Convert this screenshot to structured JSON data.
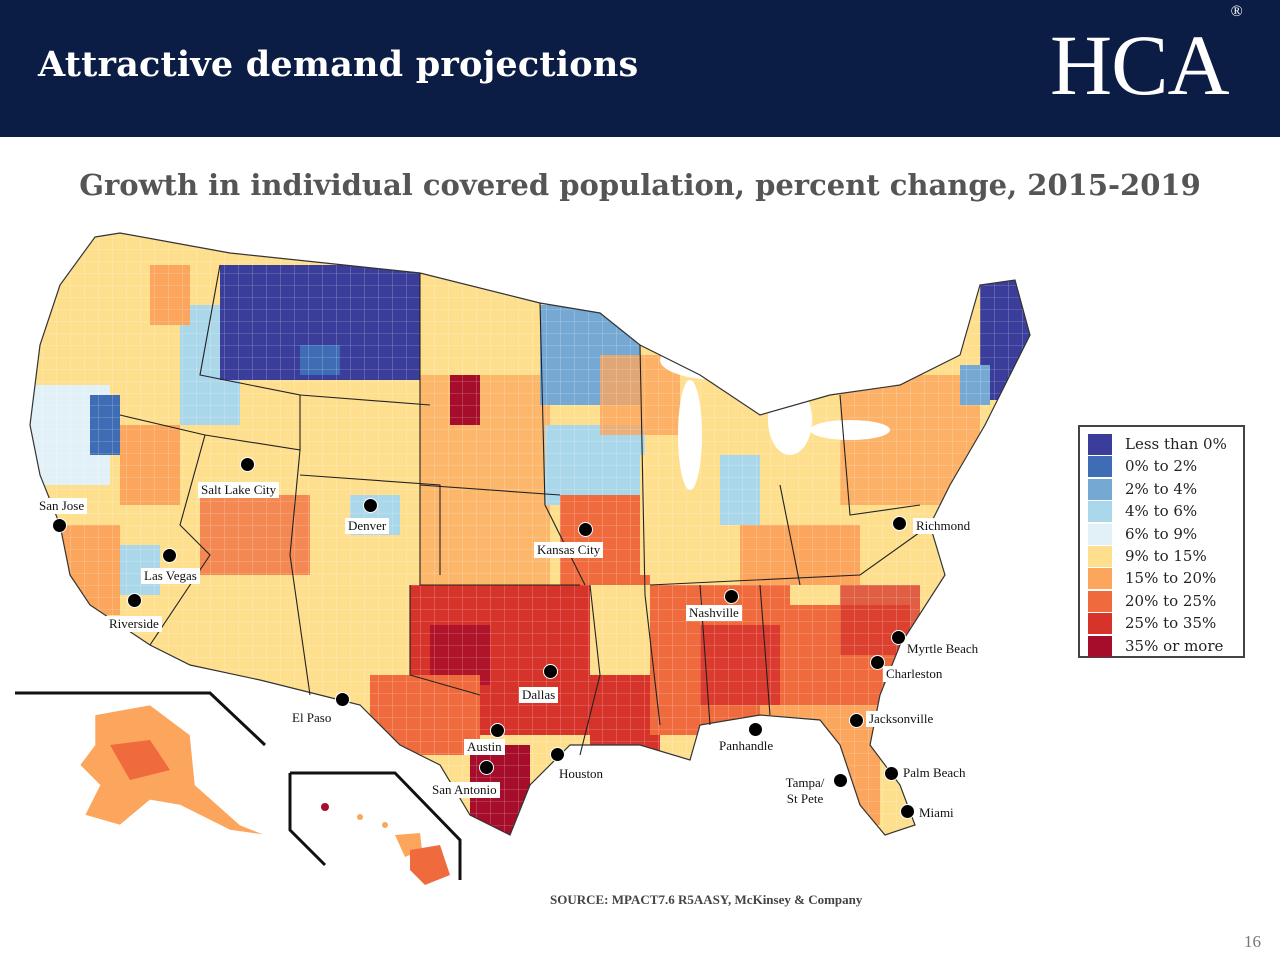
{
  "header": {
    "title": "Attractive demand projections",
    "logo_text": "HCA",
    "logo_mark": "®",
    "background_color": "#0b1c45"
  },
  "subtitle": "Growth in individual covered population, percent change, 2015-2019",
  "legend": {
    "items": [
      {
        "label": "Less than 0%",
        "color": "#3a3d9a"
      },
      {
        "label": "0% to 2%",
        "color": "#3f6db5"
      },
      {
        "label": "2% to 4%",
        "color": "#75a9d4"
      },
      {
        "label": "4% to 6%",
        "color": "#abd7ea"
      },
      {
        "label": "6% to 9%",
        "color": "#e2f1f7"
      },
      {
        "label": "9% to 15%",
        "color": "#fddf8e"
      },
      {
        "label": "15% to 20%",
        "color": "#fba55d"
      },
      {
        "label": "20% to 25%",
        "color": "#ef6b3d"
      },
      {
        "label": "25% to 35%",
        "color": "#d6332b"
      },
      {
        "label": "35% or more",
        "color": "#a50d2a"
      }
    ]
  },
  "cities": [
    {
      "name": "San Jose"
    },
    {
      "name": "Salt Lake City"
    },
    {
      "name": "Denver"
    },
    {
      "name": "Las Vegas"
    },
    {
      "name": "Riverside"
    },
    {
      "name": "Kansas City"
    },
    {
      "name": "El Paso"
    },
    {
      "name": "Dallas"
    },
    {
      "name": "Austin"
    },
    {
      "name": "San Antonio"
    },
    {
      "name": "Houston"
    },
    {
      "name": "Nashville"
    },
    {
      "name": "Panhandle"
    },
    {
      "name": "Richmond"
    },
    {
      "name": "Myrtle Beach"
    },
    {
      "name": "Charleston"
    },
    {
      "name": "Jacksonville"
    },
    {
      "name": "Palm Beach"
    },
    {
      "name": "Tampa/ St Pete"
    },
    {
      "name": "Miami"
    }
  ],
  "source": "SOURCE: MPACT7.6 R5AASY, McKinsey & Company",
  "page_number": "16"
}
